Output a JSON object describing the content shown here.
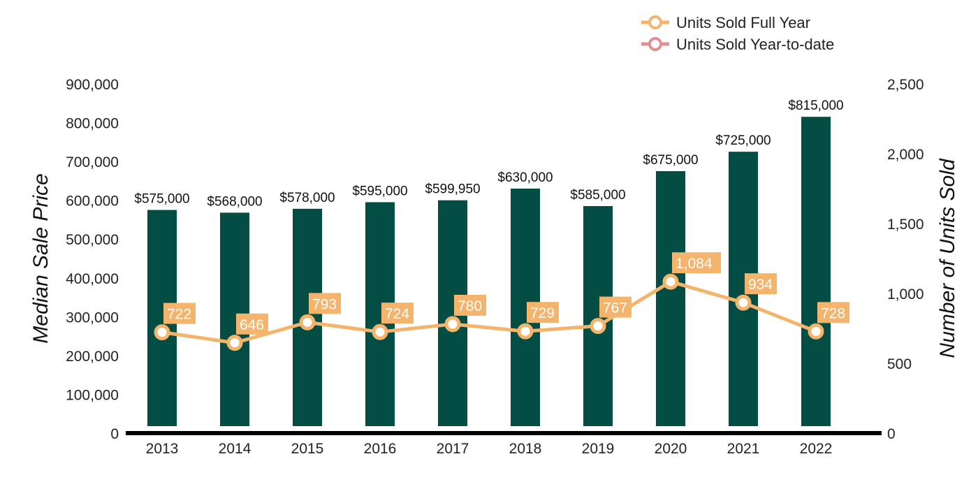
{
  "chart_data": {
    "type": "bar",
    "categories": [
      "2013",
      "2014",
      "2015",
      "2016",
      "2017",
      "2018",
      "2019",
      "2020",
      "2021",
      "2022"
    ],
    "series": [
      {
        "name": "Median Sale Price",
        "kind": "bar",
        "axis": "left",
        "values": [
          575000,
          568000,
          578000,
          595000,
          599950,
          630000,
          585000,
          675000,
          725000,
          815000
        ],
        "labels": [
          "$575,000",
          "$568,000",
          "$578,000",
          "$595,000",
          "$599,950",
          "$630,000",
          "$585,000",
          "$675,000",
          "$725,000",
          "$815,000"
        ]
      },
      {
        "name": "Units Sold Full Year",
        "kind": "line",
        "axis": "right",
        "values": [
          722,
          646,
          793,
          724,
          780,
          729,
          767,
          1084,
          934,
          728
        ],
        "labels": [
          "722",
          "646",
          "793",
          "724",
          "780",
          "729",
          "767",
          "1,084",
          "934",
          "728"
        ]
      }
    ],
    "legend": {
      "position": "top-right",
      "entries": [
        {
          "label": "Units Sold Full Year",
          "color": "#f4b46c"
        },
        {
          "label": "Units Sold Year-to-date",
          "color": "#e09090"
        }
      ]
    },
    "ylabel": "Median Sale Price",
    "ylabel_right": "Number of Units Sold",
    "ylim": [
      0,
      900000
    ],
    "ylim_right": [
      0,
      2500
    ],
    "yticks": [
      "0",
      "100,000",
      "200,000",
      "300,000",
      "400,000",
      "500,000",
      "600,000",
      "700,000",
      "800,000",
      "900,000"
    ],
    "yticks_right": [
      "0",
      "500",
      "1,000",
      "1,500",
      "2,000",
      "2,500"
    ],
    "colors": {
      "bar": "#034d45",
      "line": "#f4b46c",
      "line_ytd": "#e09090",
      "axis": "#000000"
    }
  }
}
